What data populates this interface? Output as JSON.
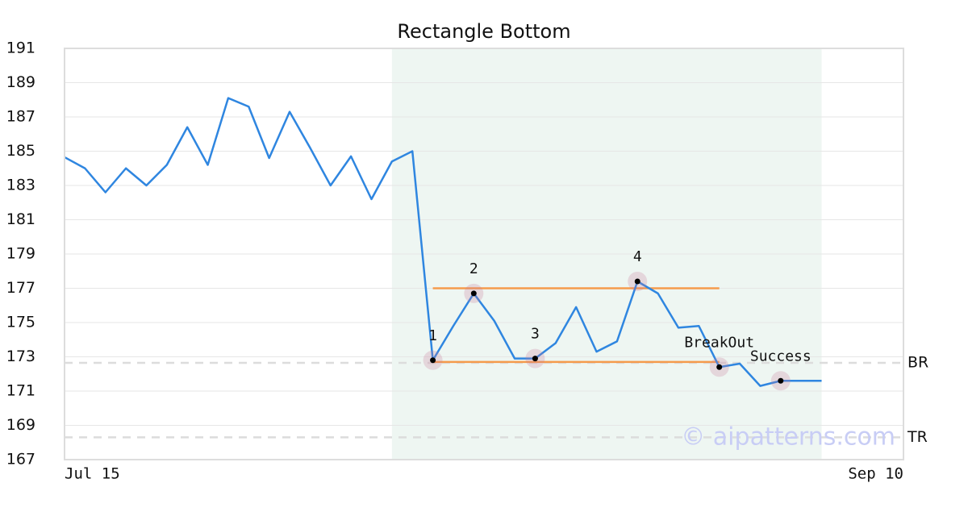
{
  "chart_data": {
    "type": "line",
    "title": "Rectangle Bottom",
    "x": [
      0,
      1,
      2,
      3,
      4,
      5,
      6,
      7,
      8,
      9,
      10,
      11,
      12,
      13,
      14,
      15,
      16,
      17,
      18,
      19,
      20,
      21,
      22,
      23,
      24,
      25,
      26,
      27,
      28,
      29,
      30,
      31,
      32,
      33,
      34,
      35,
      36,
      37
    ],
    "series": [
      {
        "color": "#2f86e0",
        "values": [
          184.65,
          184.0,
          182.6,
          184.0,
          183.0,
          184.2,
          186.4,
          184.2,
          188.1,
          187.6,
          184.6,
          187.3,
          185.2,
          183.0,
          184.7,
          182.2,
          184.4,
          185.0,
          172.8,
          174.8,
          176.7,
          175.1,
          172.9,
          172.9,
          173.8,
          175.9,
          173.3,
          173.9,
          177.4,
          176.7,
          174.7,
          174.8,
          172.4,
          172.6,
          171.3,
          171.6,
          171.6,
          171.6
        ]
      }
    ],
    "xlim": [
      0,
      41
    ],
    "xticks": [
      {
        "value": 0,
        "label": "Jul 15"
      },
      {
        "value": 41,
        "label": "Sep 10"
      }
    ],
    "ylim": [
      167,
      191
    ],
    "yticks": [
      167,
      169,
      171,
      173,
      175,
      177,
      179,
      181,
      183,
      185,
      187,
      189,
      191
    ],
    "grid": true,
    "highlight": {
      "x": [
        16,
        37
      ],
      "color": "#eef6f2"
    },
    "levels": [
      {
        "value": 177.0,
        "x": [
          18,
          32
        ],
        "color": "#f59b4c"
      },
      {
        "value": 172.7,
        "x": [
          18,
          32
        ],
        "color": "#f59b4c"
      }
    ],
    "reference_lines": [
      {
        "label": "BR",
        "value": 172.65
      },
      {
        "label": "TR",
        "value": 168.3
      }
    ],
    "annotations": [
      {
        "label": "1",
        "index": 18
      },
      {
        "label": "2",
        "index": 20
      },
      {
        "label": "3",
        "index": 23
      },
      {
        "label": "4",
        "index": 28
      },
      {
        "label": "BreakOut",
        "index": 32
      },
      {
        "label": "Success",
        "index": 35
      }
    ],
    "watermark": "© aipatterns.com"
  }
}
